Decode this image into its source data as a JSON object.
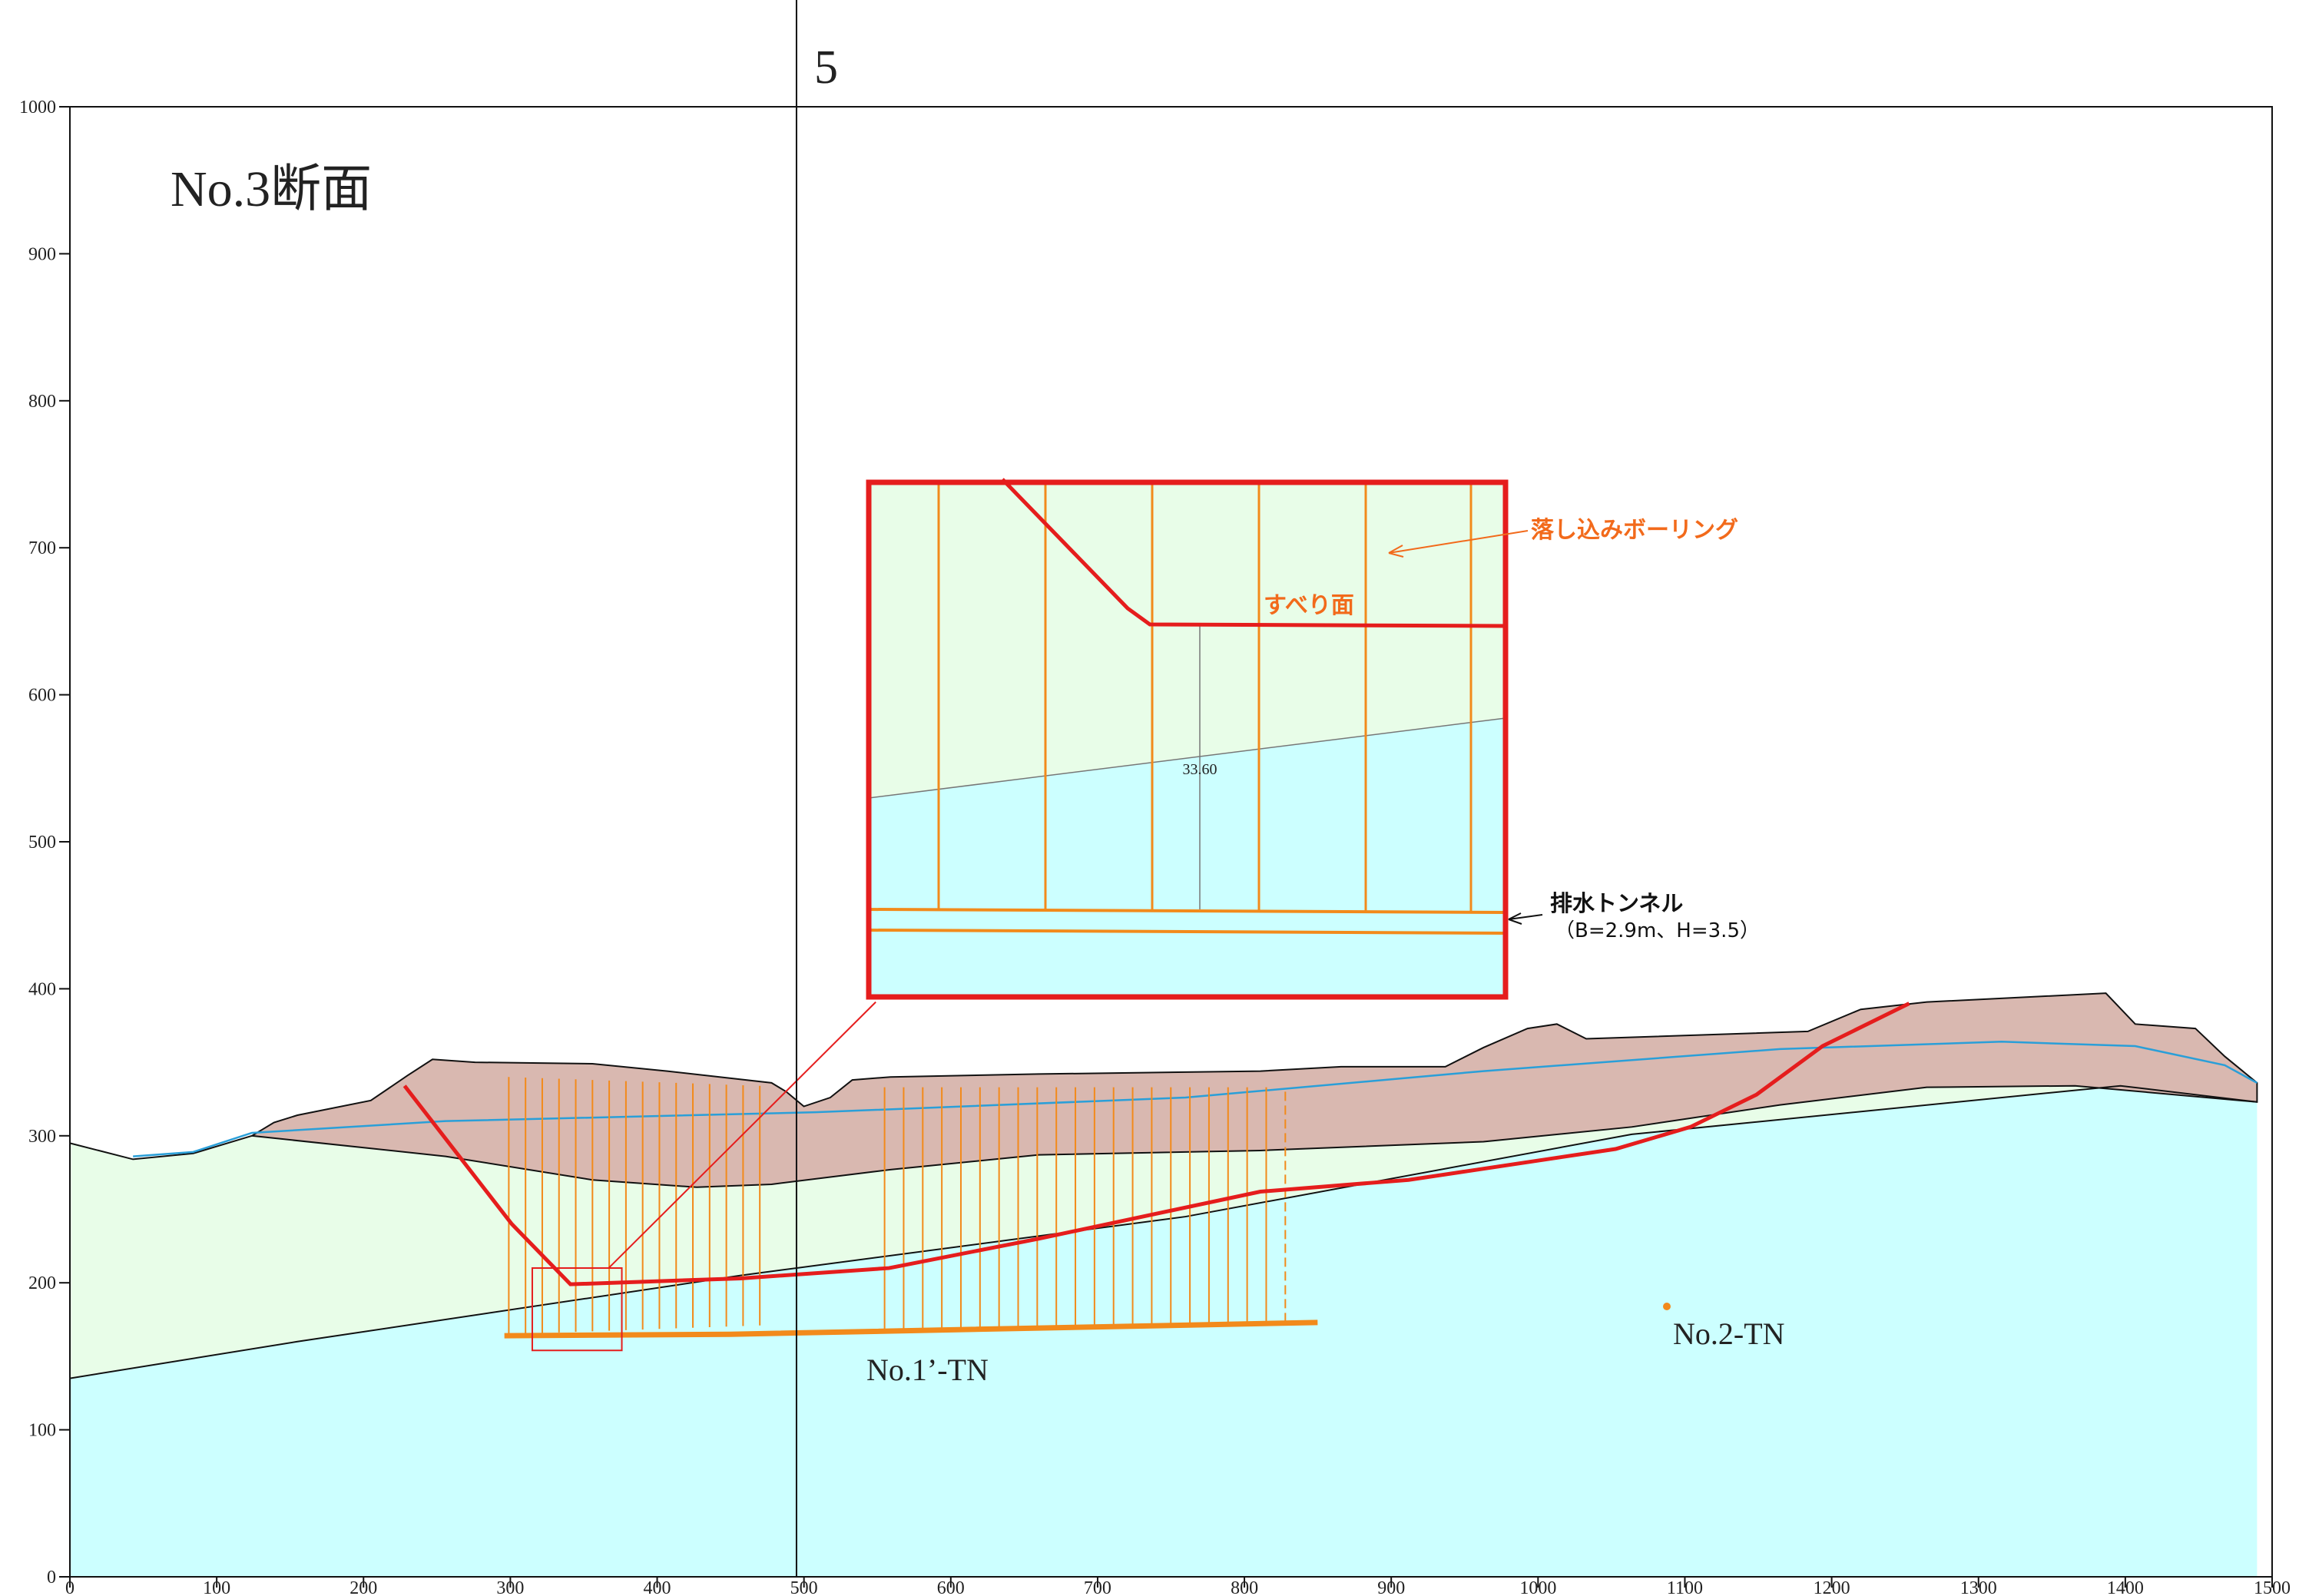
{
  "header": {
    "section_number": "5",
    "title": "No.3断面"
  },
  "axes": {
    "xlim": [
      0,
      1500
    ],
    "ylim": [
      0,
      1000
    ],
    "xticks": [
      0,
      100,
      200,
      300,
      400,
      500,
      600,
      700,
      800,
      900,
      1000,
      1100,
      1200,
      1300,
      1400,
      1500
    ],
    "yticks": [
      0,
      100,
      200,
      300,
      400,
      500,
      600,
      700,
      800,
      900,
      1000
    ]
  },
  "inset": {
    "boring_label": "落し込みボーリング",
    "slip_label": "すべり面",
    "dimension": "33.60",
    "tunnel_label": "排水トンネル",
    "tunnel_size": "（B=2.9m、H=3.5）"
  },
  "tunnels": [
    "No.1’-TN",
    "No.2-TN"
  ]
}
